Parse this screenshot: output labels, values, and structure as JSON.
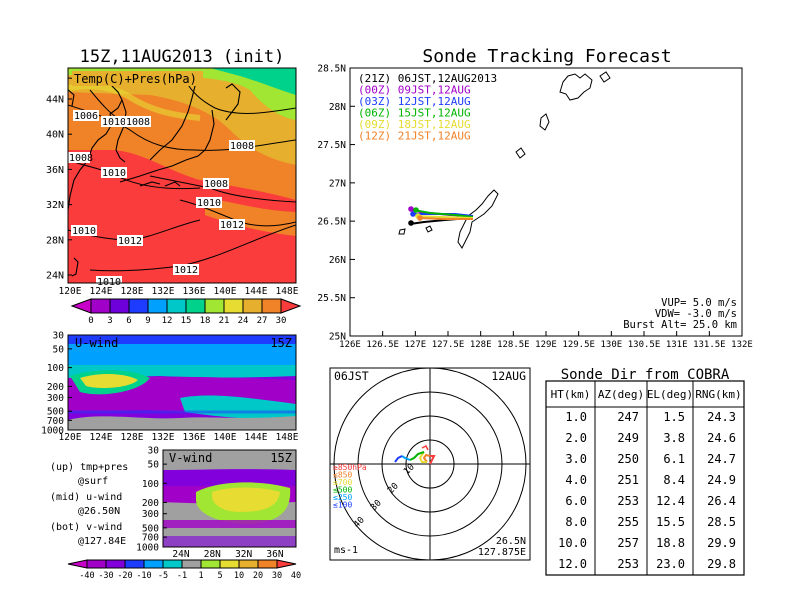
{
  "left_title": "15Z,11AUG2013 (init)",
  "temp_panel": {
    "label": "Temp(C)+Pres(hPa)",
    "lat_ticks": [
      "44N",
      "40N",
      "36N",
      "32N",
      "28N",
      "24N"
    ],
    "lon_ticks": [
      "120E",
      "124E",
      "128E",
      "132E",
      "136E",
      "140E",
      "144E",
      "148E"
    ],
    "isobar_labels": [
      "1006",
      "1010",
      "1008",
      "1008",
      "1008",
      "1010",
      "1008",
      "1010",
      "1010",
      "1012",
      "1012",
      "1010",
      "1012"
    ],
    "colorbar_ticks": [
      "0",
      "3",
      "6",
      "9",
      "12",
      "15",
      "18",
      "21",
      "24",
      "27",
      "30"
    ],
    "colors": [
      "#a000c8",
      "#6e00dc",
      "#1e3cff",
      "#00a0ff",
      "#00c8c8",
      "#00d28c",
      "#a0e632",
      "#e6dc32",
      "#e6af2d",
      "#f08228",
      "#fa3c3c"
    ]
  },
  "u_panel": {
    "label": "U-wind",
    "time": "15Z",
    "y_ticks": [
      "30",
      "50",
      "100",
      "200",
      "300",
      "500",
      "700",
      "1000"
    ],
    "x_ticks": [
      "120E",
      "124E",
      "128E",
      "132E",
      "136E",
      "140E",
      "144E",
      "148E"
    ]
  },
  "v_panel": {
    "label": "V-wind",
    "time": "15Z",
    "y_ticks": [
      "30",
      "50",
      "100",
      "200",
      "300",
      "500",
      "700",
      "1000"
    ],
    "x_ticks": [
      "24N",
      "28N",
      "32N",
      "36N"
    ]
  },
  "notes": [
    "(up) tmp+pres",
    "@surf",
    "(mid) u-wind",
    "@26.50N",
    "(bot) v-wind",
    "@127.84E"
  ],
  "wind_colorbar": {
    "ticks": [
      "-40",
      "-30",
      "-20",
      "-10",
      "-5",
      "-1",
      "1",
      "5",
      "10",
      "20",
      "30",
      "40"
    ],
    "colors": [
      "#a000c8",
      "#8200dc",
      "#1e3cff",
      "#00a0ff",
      "#00c8c8",
      "#a0a0a0",
      "#a0e632",
      "#e6dc32",
      "#e6af2d",
      "#f08228",
      "#fa3c3c"
    ]
  },
  "track": {
    "title": "Sonde Tracking Forecast",
    "y_ticks": [
      "28.5N",
      "28N",
      "27.5N",
      "27N",
      "26.5N",
      "26N",
      "25.5N",
      "25N"
    ],
    "x_ticks": [
      "126E",
      "126.5E",
      "127E",
      "127.5E",
      "128E",
      "128.5E",
      "129E",
      "129.5E",
      "130E",
      "130.5E",
      "131E",
      "131.5E",
      "132E"
    ],
    "legend": [
      {
        "text": "(21Z)  06JST,12AUG2013",
        "color": "#000000"
      },
      {
        "text": "(00Z)  09JST,12AUG",
        "color": "#a000c8"
      },
      {
        "text": "(03Z)  12JST,12AUG",
        "color": "#1e3cff"
      },
      {
        "text": "(06Z)  15JST,12AUG",
        "color": "#00b400"
      },
      {
        "text": "(09Z)  18JST,12AUG",
        "color": "#e6dc32"
      },
      {
        "text": "(12Z)  21JST,12AUG",
        "color": "#f08228"
      }
    ],
    "params": [
      "VUP=  5.0  m/s",
      "VDW= -3.0  m/s",
      "Burst Alt=  25.0  km"
    ]
  },
  "polar": {
    "time": "06JST",
    "date": "12AUG",
    "legend": [
      {
        "text": "≥850hPa",
        "color": "#fa3c3c"
      },
      {
        "text": "≤850",
        "color": "#f08228"
      },
      {
        "text": "≤700",
        "color": "#e6dc32"
      },
      {
        "text": "≤500",
        "color": "#00b400"
      },
      {
        "text": "≤250",
        "color": "#00a0ff"
      },
      {
        "text": "≤100",
        "color": "#1e3cff"
      }
    ],
    "ring_labels": [
      "10",
      "20",
      "30",
      "40"
    ],
    "units": "ms-1",
    "lat": "26.5N",
    "lon": "127.875E"
  },
  "cobra": {
    "title": "Sonde Dir from COBRA",
    "headers": [
      "HT(km)",
      "AZ(deg)",
      "EL(deg)",
      "RNG(km)"
    ],
    "rows": [
      [
        "1.0",
        "247",
        "1.5",
        "24.3"
      ],
      [
        "2.0",
        "249",
        "3.8",
        "24.6"
      ],
      [
        "3.0",
        "250",
        "6.1",
        "24.7"
      ],
      [
        "4.0",
        "251",
        "8.4",
        "24.9"
      ],
      [
        "6.0",
        "253",
        "12.4",
        "26.4"
      ],
      [
        "8.0",
        "255",
        "15.5",
        "28.5"
      ],
      [
        "10.0",
        "257",
        "18.8",
        "29.9"
      ],
      [
        "12.0",
        "253",
        "23.0",
        "29.8"
      ]
    ]
  }
}
